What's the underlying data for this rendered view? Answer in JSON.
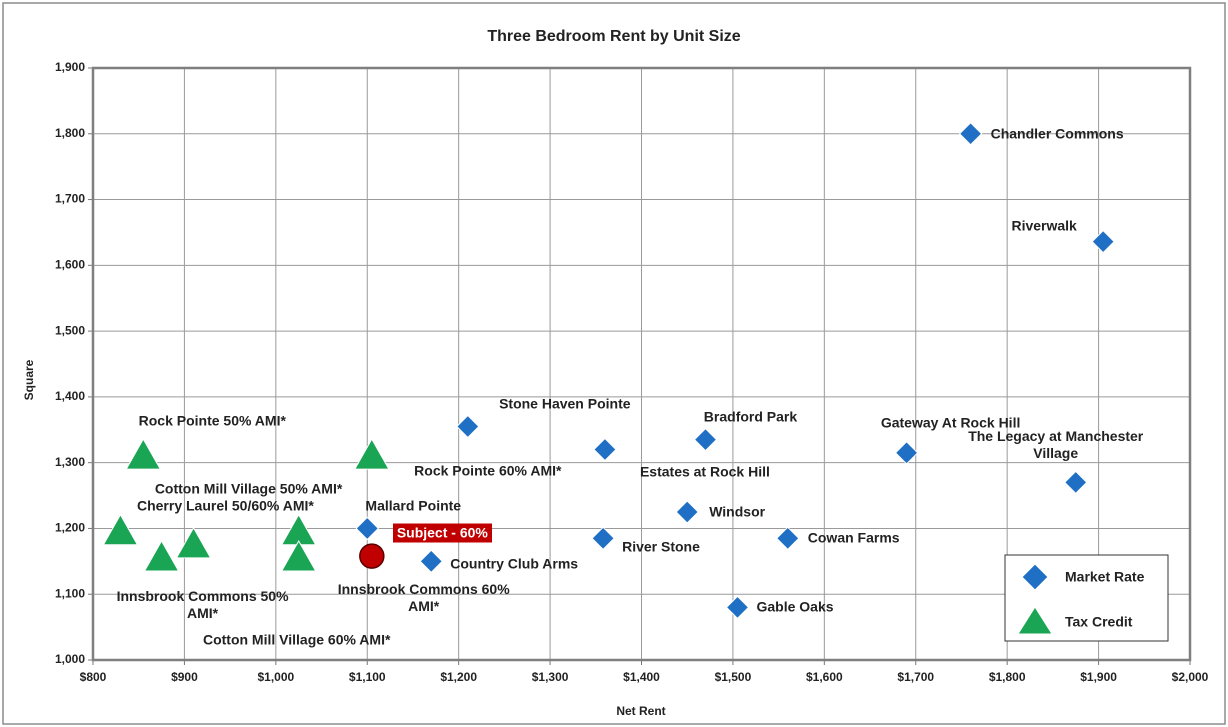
{
  "chart_data": {
    "type": "scatter",
    "title": "Three Bedroom Rent by Unit Size",
    "xlabel": "Net Rent",
    "ylabel": "Square",
    "xlim": [
      800,
      2000
    ],
    "xticks": [
      {
        "value": 800,
        "label": "$800"
      },
      {
        "value": 900,
        "label": "$900"
      },
      {
        "value": 1000,
        "label": "$1,000"
      },
      {
        "value": 1100,
        "label": "$1,100"
      },
      {
        "value": 1200,
        "label": "$1,200"
      },
      {
        "value": 1300,
        "label": "$1,300"
      },
      {
        "value": 1400,
        "label": "$1,400"
      },
      {
        "value": 1500,
        "label": "$1,500"
      },
      {
        "value": 1600,
        "label": "$1,600"
      },
      {
        "value": 1700,
        "label": "$1,700"
      },
      {
        "value": 1800,
        "label": "$1,800"
      },
      {
        "value": 1900,
        "label": "$1,900"
      },
      {
        "value": 2000,
        "label": "$2,000"
      }
    ],
    "ylim": [
      1000,
      1900
    ],
    "yticks": [
      {
        "value": 1000,
        "label": "1,000"
      },
      {
        "value": 1100,
        "label": "1,100"
      },
      {
        "value": 1200,
        "label": "1,200"
      },
      {
        "value": 1300,
        "label": "1,300"
      },
      {
        "value": 1400,
        "label": "1,400"
      },
      {
        "value": 1500,
        "label": "1,500"
      },
      {
        "value": 1600,
        "label": "1,600"
      },
      {
        "value": 1700,
        "label": "1,700"
      },
      {
        "value": 1800,
        "label": "1,800"
      },
      {
        "value": 1900,
        "label": "1,900"
      }
    ],
    "grid": true,
    "legend": "bottom-right",
    "series": [
      {
        "name": "Market Rate",
        "color": "#1f6fc5",
        "marker": "diamond",
        "x": [
          1760,
          1905,
          1210,
          1360,
          1470,
          1690,
          1875,
          1450,
          1100,
          1358,
          1560,
          1170,
          1505
        ],
        "values": [
          1800,
          1636,
          1355,
          1320,
          1335,
          1315,
          1270,
          1225,
          1200,
          1185,
          1185,
          1150,
          1080
        ],
        "labels": [
          "Chandler Commons",
          "Riverwalk",
          "Stone Haven Pointe",
          "Estates at Rock Hill",
          "Bradford Park",
          "Gateway At Rock Hill",
          "The Legacy at Manchester Village",
          "Windsor",
          "Mallard Pointe",
          "River Stone",
          "Cowan Farms",
          "Country Club Arms",
          "Gable Oaks"
        ]
      },
      {
        "name": "Tax Credit",
        "color": "#1aa554",
        "marker": "triangle",
        "x": [
          855,
          1105,
          830,
          875,
          910,
          1025,
          1025
        ],
        "values": [
          1310,
          1310,
          1195,
          1155,
          1175,
          1195,
          1155
        ],
        "labels": [
          "Rock Pointe 50% AMI*",
          "Rock Pointe 60% AMI*",
          "Cherry Laurel 50/60% AMI*",
          "Innsbrook Commons 50% AMI*",
          "Cotton Mill Village 50% AMI*",
          "Innsbrook Commons 60% AMI*",
          "Cotton Mill Village 60% AMI*"
        ]
      }
    ],
    "subject": {
      "label": "Subject - 60%",
      "x": 1105,
      "y": 1158,
      "color": "#c00000"
    }
  }
}
